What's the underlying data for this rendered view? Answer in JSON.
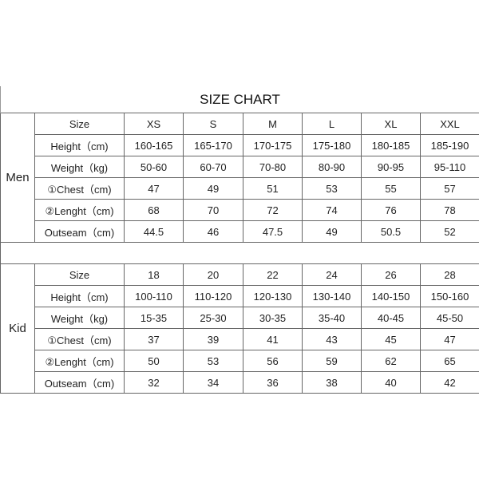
{
  "title": "SIZE CHART",
  "groups": [
    {
      "name": "Men",
      "rows": [
        {
          "label": "Size",
          "values": [
            "XS",
            "S",
            "M",
            "L",
            "XL",
            "XXL"
          ]
        },
        {
          "label": "Height（cm)",
          "values": [
            "160-165",
            "165-170",
            "170-175",
            "175-180",
            "180-185",
            "185-190"
          ]
        },
        {
          "label": "Weight（kg)",
          "values": [
            "50-60",
            "60-70",
            "70-80",
            "80-90",
            "90-95",
            "95-110"
          ]
        },
        {
          "label": "①Chest（cm)",
          "values": [
            "47",
            "49",
            "51",
            "53",
            "55",
            "57"
          ]
        },
        {
          "label": "②Lenght（cm)",
          "values": [
            "68",
            "70",
            "72",
            "74",
            "76",
            "78"
          ]
        },
        {
          "label": "Outseam（cm)",
          "values": [
            "44.5",
            "46",
            "47.5",
            "49",
            "50.5",
            "52"
          ]
        }
      ]
    },
    {
      "name": "Kid",
      "rows": [
        {
          "label": "Size",
          "values": [
            "18",
            "20",
            "22",
            "24",
            "26",
            "28"
          ]
        },
        {
          "label": "Height（cm)",
          "values": [
            "100-110",
            "110-120",
            "120-130",
            "130-140",
            "140-150",
            "150-160"
          ]
        },
        {
          "label": "Weight（kg)",
          "values": [
            "15-35",
            "25-30",
            "30-35",
            "35-40",
            "40-45",
            "45-50"
          ]
        },
        {
          "label": "①Chest（cm)",
          "values": [
            "37",
            "39",
            "41",
            "43",
            "45",
            "47"
          ]
        },
        {
          "label": "②Lenght（cm)",
          "values": [
            "50",
            "53",
            "56",
            "59",
            "62",
            "65"
          ]
        },
        {
          "label": "Outseam（cm)",
          "values": [
            "32",
            "34",
            "36",
            "38",
            "40",
            "42"
          ]
        }
      ]
    }
  ]
}
